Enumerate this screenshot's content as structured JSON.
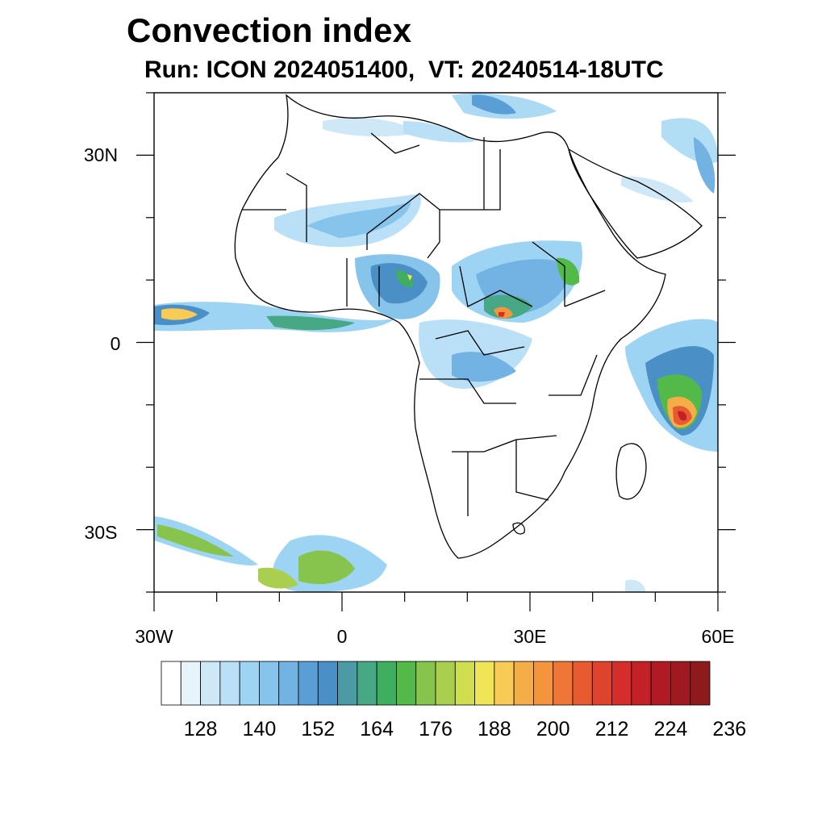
{
  "title": "Convection index",
  "subtitle": "Run: ICON 2024051400,  VT: 20240514-18UTC",
  "map": {
    "region": "Africa",
    "lon_range": [
      -30,
      60
    ],
    "lat_range": [
      -40,
      40
    ],
    "lat_labels": [
      {
        "lat": 30,
        "text": "30N"
      },
      {
        "lat": 0,
        "text": "0"
      },
      {
        "lat": -30,
        "text": "30S"
      }
    ],
    "lon_labels": [
      {
        "lon": -30,
        "text": "30W"
      },
      {
        "lon": 0,
        "text": "0"
      },
      {
        "lon": 30,
        "text": "30E"
      },
      {
        "lon": 60,
        "text": "60E"
      }
    ]
  },
  "colorbar": {
    "colors": [
      "#ffffff",
      "#e8f4fb",
      "#cfe8f7",
      "#b9e0f6",
      "#9ed4f3",
      "#87c4ec",
      "#72b3e3",
      "#5a9ed6",
      "#4a8fc6",
      "#4b9aa6",
      "#46a884",
      "#3fae5e",
      "#53b948",
      "#86c44e",
      "#aacf4f",
      "#cede4f",
      "#f0e457",
      "#f7cb55",
      "#f5ae47",
      "#f4943d",
      "#ef7637",
      "#e85b30",
      "#df432b",
      "#d52e2a",
      "#c32028",
      "#b01a24",
      "#9e1a20",
      "#8e1a1e"
    ],
    "labels": [
      "128",
      "140",
      "152",
      "164",
      "176",
      "188",
      "200",
      "212",
      "224",
      "236"
    ]
  }
}
